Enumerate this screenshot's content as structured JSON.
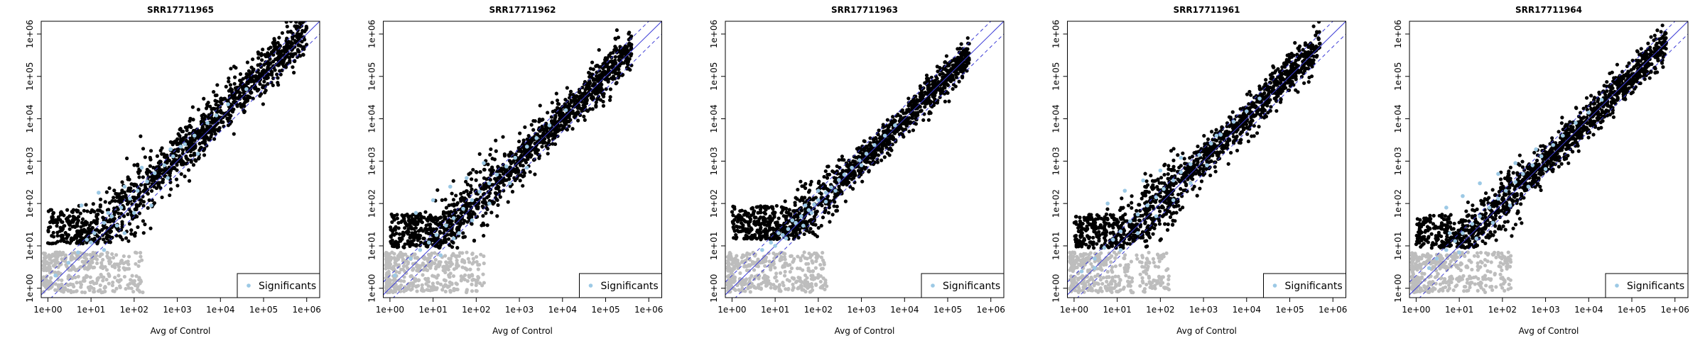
{
  "chart_data": [
    {
      "type": "scatter",
      "title": "SRR17711965",
      "xlabel": "Avg of Control",
      "ylabel": "",
      "x_scale": "log10",
      "y_scale": "log10",
      "xlim": [
        0.7,
        2000000
      ],
      "ylim": [
        0.6,
        2000000
      ],
      "x_ticks": [
        "1e+00",
        "1e+01",
        "1e+02",
        "1e+03",
        "1e+04",
        "1e+05",
        "1e+06"
      ],
      "y_ticks": [
        "1e+00",
        "1e+01",
        "1e+02",
        "1e+03",
        "1e+04",
        "1e+05",
        "1e+06"
      ],
      "reference_lines": [
        "y = x (solid blue)",
        "y = 2x (dashed blue)",
        "y = x/2 (dashed blue)"
      ],
      "legend": {
        "position": "bottom-right",
        "entries": [
          "Significants"
        ]
      },
      "series": [
        {
          "name": "Significants",
          "color": "#9cc9e5",
          "points": [
            [
              1.5,
              2.0
            ],
            [
              3,
              4
            ],
            [
              5,
              7
            ],
            [
              8,
              14
            ],
            [
              12,
              20
            ],
            [
              20,
              35
            ],
            [
              30,
              50
            ],
            [
              50,
              80
            ],
            [
              80,
              130
            ],
            [
              120,
              200
            ],
            [
              200,
              330
            ],
            [
              300,
              520
            ],
            [
              500,
              800
            ],
            [
              800,
              1300
            ],
            [
              1500,
              2500
            ],
            [
              2500,
              4000
            ],
            [
              5000,
              8000
            ],
            [
              8000,
              12000
            ],
            [
              15000,
              22000
            ],
            [
              40000,
              50000
            ],
            [
              6,
              90
            ],
            [
              15,
              180
            ],
            [
              25,
              60
            ],
            [
              60,
              250
            ],
            [
              150,
              700
            ],
            [
              700,
              1900
            ],
            [
              1200,
              2200
            ],
            [
              40,
              30
            ],
            [
              100,
              60
            ],
            [
              10,
              12
            ],
            [
              250,
              90
            ],
            [
              600,
              400
            ],
            [
              3000,
              1500
            ],
            [
              60,
              20
            ],
            [
              20,
              8
            ]
          ]
        }
      ]
    },
    {
      "type": "scatter",
      "title": "SRR17711962",
      "xlabel": "Avg of Control",
      "ylabel": "",
      "x_scale": "log10",
      "y_scale": "log10",
      "xlim": [
        0.7,
        2000000
      ],
      "ylim": [
        0.6,
        2000000
      ],
      "x_ticks": [
        "1e+00",
        "1e+01",
        "1e+02",
        "1e+03",
        "1e+04",
        "1e+05",
        "1e+06"
      ],
      "y_ticks": [
        "1e+00",
        "1e+01",
        "1e+02",
        "1e+03",
        "1e+04",
        "1e+05",
        "1e+06"
      ],
      "reference_lines": [
        "y = x (solid blue)",
        "y = 2x (dashed blue)",
        "y = x/2 (dashed blue)"
      ],
      "legend": {
        "position": "bottom-right",
        "entries": [
          "Significants"
        ]
      },
      "series": [
        {
          "name": "Significants",
          "color": "#9cc9e5",
          "points": [
            [
              1.3,
              2.0
            ],
            [
              3,
              5
            ],
            [
              5,
              8
            ],
            [
              8,
              12
            ],
            [
              12,
              18
            ],
            [
              20,
              30
            ],
            [
              30,
              45
            ],
            [
              50,
              75
            ],
            [
              80,
              120
            ],
            [
              120,
              190
            ],
            [
              200,
              300
            ],
            [
              300,
              480
            ],
            [
              500,
              750
            ],
            [
              800,
              1200
            ],
            [
              1500,
              2200
            ],
            [
              2500,
              3500
            ],
            [
              5000,
              7000
            ],
            [
              12000,
              16000
            ],
            [
              4,
              60
            ],
            [
              10,
              120
            ],
            [
              25,
              250
            ],
            [
              60,
              400
            ],
            [
              150,
              900
            ],
            [
              30,
              15
            ],
            [
              80,
              40
            ],
            [
              200,
              100
            ],
            [
              600,
              300
            ],
            [
              1500,
              700
            ],
            [
              15,
              6
            ],
            [
              40,
              20
            ]
          ]
        }
      ]
    },
    {
      "type": "scatter",
      "title": "SRR17711963",
      "xlabel": "Avg of Control",
      "ylabel": "",
      "x_scale": "log10",
      "y_scale": "log10",
      "xlim": [
        0.7,
        2000000
      ],
      "ylim": [
        0.6,
        2000000
      ],
      "x_ticks": [
        "1e+00",
        "1e+01",
        "1e+02",
        "1e+03",
        "1e+04",
        "1e+05",
        "1e+06"
      ],
      "y_ticks": [
        "1e+00",
        "1e+01",
        "1e+02",
        "1e+03",
        "1e+04",
        "1e+05",
        "1e+06"
      ],
      "reference_lines": [
        "y = x (solid blue)",
        "y = 2x (dashed blue)",
        "y = x/2 (dashed blue)"
      ],
      "legend": {
        "position": "bottom-right",
        "entries": [
          "Significants"
        ]
      },
      "series": [
        {
          "name": "Significants",
          "color": "#9cc9e5",
          "points": [
            [
              10,
              10
            ],
            [
              15,
              18
            ],
            [
              20,
              25
            ],
            [
              30,
              35
            ],
            [
              40,
              50
            ],
            [
              60,
              70
            ],
            [
              80,
              95
            ],
            [
              100,
              120
            ],
            [
              150,
              180
            ],
            [
              200,
              240
            ],
            [
              300,
              360
            ],
            [
              400,
              480
            ],
            [
              600,
              700
            ],
            [
              900,
              1050
            ],
            [
              1300,
              1500
            ],
            [
              2000,
              2400
            ],
            [
              3500,
              4000
            ],
            [
              6000,
              7000
            ],
            [
              12,
              20
            ],
            [
              25,
              40
            ],
            [
              50,
              90
            ],
            [
              100,
              200
            ],
            [
              8,
              12
            ],
            [
              18,
              15
            ],
            [
              45,
              30
            ],
            [
              150,
              110
            ],
            [
              5,
              8
            ],
            [
              70,
              60
            ],
            [
              250,
              200
            ],
            [
              1000,
              800
            ]
          ]
        }
      ]
    },
    {
      "type": "scatter",
      "title": "SRR17711961",
      "xlabel": "Avg of Control",
      "ylabel": "",
      "x_scale": "log10",
      "y_scale": "log10",
      "xlim": [
        0.7,
        2000000
      ],
      "ylim": [
        0.6,
        2000000
      ],
      "x_ticks": [
        "1e+00",
        "1e+01",
        "1e+02",
        "1e+03",
        "1e+04",
        "1e+05",
        "1e+06"
      ],
      "y_ticks": [
        "1e+00",
        "1e+01",
        "1e+02",
        "1e+03",
        "1e+04",
        "1e+05",
        "1e+06"
      ],
      "reference_lines": [
        "y = x (solid blue)",
        "y = 2x (dashed blue)",
        "y = x/2 (dashed blue)"
      ],
      "legend": {
        "position": "bottom-right",
        "entries": [
          "Significants"
        ]
      },
      "series": [
        {
          "name": "Significants",
          "color": "#9cc9e5",
          "points": [
            [
              1.5,
              2.5
            ],
            [
              3,
              5
            ],
            [
              5,
              9
            ],
            [
              8,
              14
            ],
            [
              12,
              22
            ],
            [
              20,
              38
            ],
            [
              30,
              55
            ],
            [
              50,
              90
            ],
            [
              80,
              140
            ],
            [
              120,
              220
            ],
            [
              200,
              350
            ],
            [
              300,
              550
            ],
            [
              500,
              850
            ],
            [
              800,
              1400
            ],
            [
              1500,
              2600
            ],
            [
              2500,
              4200
            ],
            [
              5000,
              8500
            ],
            [
              10000,
              15000
            ],
            [
              20000,
              30000
            ],
            [
              6,
              100
            ],
            [
              15,
              200
            ],
            [
              40,
              350
            ],
            [
              100,
              600
            ],
            [
              300,
              1200
            ],
            [
              30,
              20
            ],
            [
              80,
              50
            ],
            [
              200,
              120
            ],
            [
              500,
              300
            ],
            [
              1200,
              800
            ],
            [
              12,
              8
            ],
            [
              3,
              3
            ],
            [
              2000,
              4000
            ]
          ]
        }
      ]
    },
    {
      "type": "scatter",
      "title": "SRR17711964",
      "xlabel": "Avg of Control",
      "ylabel": "",
      "x_scale": "log10",
      "y_scale": "log10",
      "xlim": [
        0.7,
        2000000
      ],
      "ylim": [
        0.6,
        2000000
      ],
      "x_ticks": [
        "1e+00",
        "1e+01",
        "1e+02",
        "1e+03",
        "1e+04",
        "1e+05",
        "1e+06"
      ],
      "y_ticks": [
        "1e+00",
        "1e+01",
        "1e+02",
        "1e+03",
        "1e+04",
        "1e+05",
        "1e+06"
      ],
      "reference_lines": [
        "y = x (solid blue)",
        "y = 2x (dashed blue)",
        "y = x/2 (dashed blue)"
      ],
      "legend": {
        "position": "bottom-right",
        "entries": [
          "Significants"
        ]
      },
      "series": [
        {
          "name": "Significants",
          "color": "#9cc9e5",
          "points": [
            [
              2,
              3
            ],
            [
              3,
              5
            ],
            [
              5,
              8
            ],
            [
              8,
              13
            ],
            [
              12,
              20
            ],
            [
              20,
              33
            ],
            [
              30,
              50
            ],
            [
              50,
              80
            ],
            [
              80,
              130
            ],
            [
              120,
              200
            ],
            [
              200,
              320
            ],
            [
              300,
              500
            ],
            [
              500,
              800
            ],
            [
              800,
              1300
            ],
            [
              1500,
              2400
            ],
            [
              2500,
              4000
            ],
            [
              5000,
              8000
            ],
            [
              10000,
              14000
            ],
            [
              20000,
              28000
            ],
            [
              5,
              80
            ],
            [
              12,
              150
            ],
            [
              30,
              300
            ],
            [
              80,
              500
            ],
            [
              200,
              900
            ],
            [
              600,
              1900
            ],
            [
              25,
              15
            ],
            [
              60,
              35
            ],
            [
              150,
              90
            ],
            [
              400,
              250
            ],
            [
              1000,
              650
            ],
            [
              10,
              7
            ],
            [
              6,
              20
            ]
          ]
        }
      ]
    }
  ]
}
